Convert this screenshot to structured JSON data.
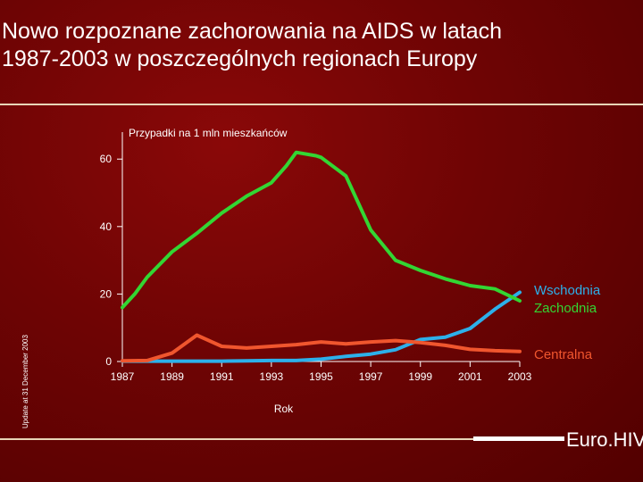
{
  "title_lines": [
    "Nowo rozpoznane zachorowania na AIDS w latach",
    "1987-2003 w poszczególnych regionach Europy"
  ],
  "side_note": "Update at 31 December 2003",
  "footer": "Euro.HIV",
  "chart_data": {
    "type": "line",
    "ylabel": "Przypadki na 1 mln mieszkańców",
    "xlabel": "Rok",
    "ylim": [
      0,
      68
    ],
    "xlim": [
      1987,
      2003
    ],
    "yticks": [
      0,
      20,
      40,
      60
    ],
    "xticks": [
      "1987",
      "1989",
      "1991",
      "1993",
      "1995",
      "1997",
      "1999",
      "2001",
      "2003"
    ],
    "series": [
      {
        "name": "Wschodnia",
        "color": "#2db0ea",
        "x": [
          1987,
          1988,
          1989,
          1990,
          1991,
          1992,
          1993,
          1994,
          1995,
          1996,
          1997,
          1998,
          1999,
          2000,
          2001,
          2002,
          2003
        ],
        "values": [
          0.1,
          0.1,
          0.1,
          0.1,
          0.1,
          0.2,
          0.3,
          0.3,
          0.7,
          1.5,
          2.2,
          3.5,
          6.5,
          7.2,
          9.8,
          15.5,
          20.5
        ]
      },
      {
        "name": "Zachodnia",
        "color": "#33d633",
        "x": [
          1987,
          1987.5,
          1988,
          1989,
          1990,
          1991,
          1992,
          1993,
          1993.6,
          1994,
          1994.8,
          1995,
          1996,
          1997,
          1998,
          1999,
          2000,
          2001,
          2002,
          2003
        ],
        "values": [
          16,
          20,
          25,
          32.5,
          38,
          44,
          49,
          53,
          58,
          62,
          61,
          60.5,
          55,
          39,
          30,
          27,
          24.5,
          22.5,
          21.5,
          18
        ]
      },
      {
        "name": "Centralna",
        "color": "#f0562e",
        "x": [
          1987,
          1988,
          1989,
          1990,
          1991,
          1992,
          1993,
          1994,
          1995,
          1996,
          1997,
          1998,
          1999,
          2000,
          2001,
          2002,
          2003
        ],
        "values": [
          0.2,
          0.3,
          2.5,
          7.8,
          4.5,
          4,
          4.5,
          5,
          5.8,
          5.2,
          5.8,
          6.2,
          5.6,
          4.8,
          3.6,
          3.2,
          3
        ]
      }
    ]
  }
}
